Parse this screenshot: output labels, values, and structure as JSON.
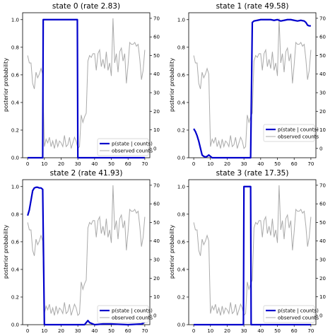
{
  "figure": {
    "axis_label": "posterior probability",
    "legend": {
      "posterior_label": "p(state | counts)",
      "observed_label": "observed counts"
    },
    "colors": {
      "posterior": "#0000cc",
      "observed": "#aaaaaa"
    }
  },
  "chart_data": [
    {
      "type": "line",
      "title": "state 0 (rate 2.83)",
      "ylabel": "posterior probability",
      "x_ticks": [
        0,
        10,
        20,
        30,
        40,
        50,
        60,
        70
      ],
      "y_ticks": [
        0.0,
        0.2,
        0.4,
        0.6,
        0.8,
        1.0
      ],
      "y_tick_labels": [
        "0.0",
        "0.2",
        "0.4",
        "0.6",
        "0.8",
        "1.0"
      ],
      "y2_ticks": [
        0,
        10,
        20,
        30,
        40,
        50,
        60,
        70
      ],
      "xlim": [
        -3,
        73
      ],
      "ylim": [
        0,
        1.05
      ],
      "y2lim": [
        -5,
        73
      ],
      "legend_position": "lower-right",
      "series": [
        {
          "name": "p(state | counts)",
          "axis": "left",
          "x": [
            0,
            9,
            9.3,
            29.7,
            30,
            70
          ],
          "y": [
            0,
            0,
            1,
            1,
            0,
            0
          ]
        }
      ]
    },
    {
      "type": "line",
      "title": "state 1 (rate 49.58)",
      "ylabel": "posterior probability",
      "x_ticks": [
        0,
        10,
        20,
        30,
        40,
        50,
        60,
        70
      ],
      "y_ticks": [
        0.0,
        0.2,
        0.4,
        0.6,
        0.8,
        1.0
      ],
      "y_tick_labels": [
        "0.0",
        "0.2",
        "0.4",
        "0.6",
        "0.8",
        "1.0"
      ],
      "y2_ticks": [
        0,
        10,
        20,
        30,
        40,
        50,
        60,
        70
      ],
      "xlim": [
        -3,
        73
      ],
      "ylim": [
        0,
        1.05
      ],
      "y2lim": [
        -5,
        73
      ],
      "legend_position": "lower-right",
      "series": [
        {
          "name": "p(state | counts)",
          "axis": "left",
          "x": [
            0,
            1,
            2,
            3,
            4,
            5,
            6,
            7,
            8,
            9,
            10,
            11,
            34,
            35,
            36,
            38,
            40,
            42,
            44,
            46,
            48,
            50,
            52,
            54,
            56,
            58,
            60,
            62,
            64,
            66,
            67,
            68,
            69,
            70
          ],
          "y": [
            0.21,
            0.19,
            0.16,
            0.12,
            0.07,
            0.02,
            0.01,
            0.005,
            0.01,
            0.02,
            0.01,
            0,
            0,
            0.98,
            0.99,
            0.995,
            1.0,
            1.0,
            1.0,
            1.0,
            0.995,
            1.0,
            0.99,
            0.995,
            1.0,
            1.0,
            0.995,
            0.99,
            0.995,
            0.99,
            0.98,
            0.96,
            0.955,
            0.955
          ]
        }
      ]
    },
    {
      "type": "line",
      "title": "state 2 (rate 41.93)",
      "ylabel": "posterior probability",
      "x_ticks": [
        0,
        10,
        20,
        30,
        40,
        50,
        60,
        70
      ],
      "y_ticks": [
        0.0,
        0.2,
        0.4,
        0.6,
        0.8,
        1.0
      ],
      "y_tick_labels": [
        "0.0",
        "0.2",
        "0.4",
        "0.6",
        "0.8",
        "1.0"
      ],
      "y2_ticks": [
        0,
        10,
        20,
        30,
        40,
        50,
        60,
        70
      ],
      "xlim": [
        -3,
        73
      ],
      "ylim": [
        0,
        1.05
      ],
      "y2lim": [
        -5,
        73
      ],
      "legend_position": "lower-right",
      "series": [
        {
          "name": "p(state | counts)",
          "axis": "left",
          "x": [
            0,
            1,
            2,
            3,
            4,
            5,
            6,
            7,
            8,
            9,
            10,
            11,
            20,
            30,
            34,
            35,
            36,
            37,
            40,
            45,
            50,
            60,
            68,
            69,
            70
          ],
          "y": [
            0.79,
            0.83,
            0.9,
            0.97,
            0.99,
            0.995,
            0.995,
            0.99,
            0.99,
            0.98,
            0,
            0,
            0,
            0,
            0,
            0.015,
            0.03,
            0.015,
            0,
            0.005,
            0.005,
            0,
            0.005,
            0.01,
            0.02
          ]
        }
      ]
    },
    {
      "type": "line",
      "title": "state 3 (rate 17.35)",
      "ylabel": "posterior probability",
      "x_ticks": [
        0,
        10,
        20,
        30,
        40,
        50,
        60,
        70
      ],
      "y_ticks": [
        0.0,
        0.2,
        0.4,
        0.6,
        0.8,
        1.0
      ],
      "y_tick_labels": [
        "0.0",
        "0.2",
        "0.4",
        "0.6",
        "0.8",
        "1.0"
      ],
      "y2_ticks": [
        0,
        10,
        20,
        30,
        40,
        50,
        60,
        70
      ],
      "xlim": [
        -3,
        73
      ],
      "ylim": [
        0,
        1.05
      ],
      "y2lim": [
        -5,
        73
      ],
      "legend_position": "lower-right",
      "series": [
        {
          "name": "p(state | counts)",
          "axis": "left",
          "x": [
            0,
            29.7,
            30,
            34,
            34.3,
            70
          ],
          "y": [
            0,
            0,
            1,
            1,
            0,
            0
          ]
        }
      ]
    }
  ],
  "observed_counts": {
    "x": [
      0,
      1,
      2,
      3,
      4,
      5,
      6,
      7,
      8,
      9,
      10,
      11,
      12,
      13,
      14,
      15,
      16,
      17,
      18,
      19,
      20,
      21,
      22,
      23,
      24,
      25,
      26,
      27,
      28,
      29,
      30,
      31,
      32,
      33,
      34,
      35,
      36,
      37,
      38,
      39,
      40,
      41,
      42,
      43,
      44,
      45,
      46,
      47,
      48,
      49,
      50,
      51,
      52,
      53,
      54,
      55,
      56,
      57,
      58,
      59,
      60,
      61,
      62,
      63,
      64,
      65,
      66,
      67,
      68,
      69,
      70
    ],
    "y": [
      50,
      46,
      46,
      35,
      32,
      41,
      38,
      40,
      43,
      40,
      1,
      5,
      3,
      6,
      1,
      4,
      0,
      5,
      1,
      4,
      3,
      1,
      7,
      1,
      2,
      6,
      0,
      3,
      6,
      4,
      0,
      1,
      18,
      14,
      17,
      19,
      47,
      50,
      49,
      51,
      51,
      42,
      51,
      53,
      44,
      48,
      43,
      52,
      42,
      46,
      39,
      70,
      46,
      51,
      41,
      52,
      54,
      47,
      51,
      35,
      45,
      57,
      56,
      56,
      57,
      55,
      56,
      48,
      37,
      42,
      53
    ]
  }
}
